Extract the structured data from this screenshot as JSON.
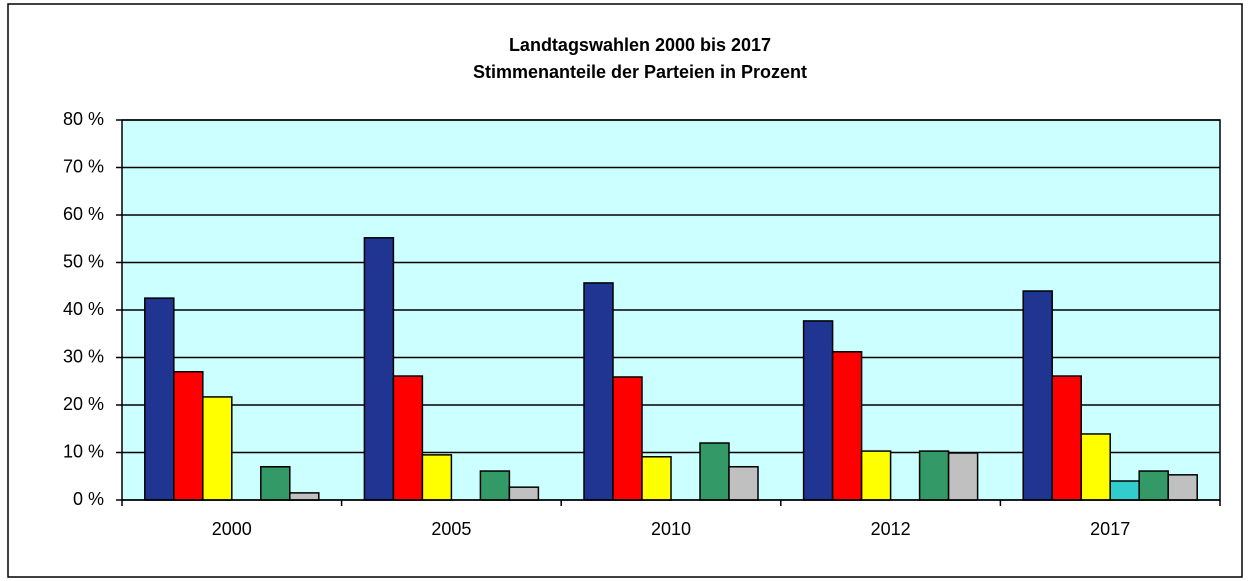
{
  "chart_data": {
    "type": "bar",
    "title": "Landtagswahlen 2000 bis 2017",
    "subtitle": "Stimmenanteile der Parteien in Prozent",
    "categories": [
      "2000",
      "2005",
      "2010",
      "2012",
      "2017"
    ],
    "series": [
      {
        "color": "#1f3591",
        "values": [
          42.5,
          55.2,
          45.7,
          37.7,
          44.0
        ]
      },
      {
        "color": "#ff0000",
        "values": [
          27.0,
          26.1,
          25.9,
          31.2,
          26.1
        ]
      },
      {
        "color": "#ffff00",
        "values": [
          21.7,
          9.5,
          9.1,
          10.3,
          13.9
        ]
      },
      {
        "color": "#33cccc",
        "values": [
          null,
          null,
          null,
          null,
          4.0
        ]
      },
      {
        "color": "#339966",
        "values": [
          7.0,
          6.1,
          12.0,
          10.3,
          6.1
        ]
      },
      {
        "color": "#c0c0c0",
        "values": [
          1.5,
          2.7,
          7.0,
          9.9,
          5.3
        ]
      }
    ],
    "ylim": [
      0,
      80
    ],
    "yticks": [
      {
        "value": 0,
        "label": "0 %"
      },
      {
        "value": 10,
        "label": "10 %"
      },
      {
        "value": 20,
        "label": "20 %"
      },
      {
        "value": 30,
        "label": "30 %"
      },
      {
        "value": 40,
        "label": "40 %"
      },
      {
        "value": 50,
        "label": "50 %"
      },
      {
        "value": 60,
        "label": "60 %"
      },
      {
        "value": 70,
        "label": "70 %"
      },
      {
        "value": 80,
        "label": "80 %"
      }
    ],
    "grid": true,
    "plot_background": "#ccffff"
  }
}
